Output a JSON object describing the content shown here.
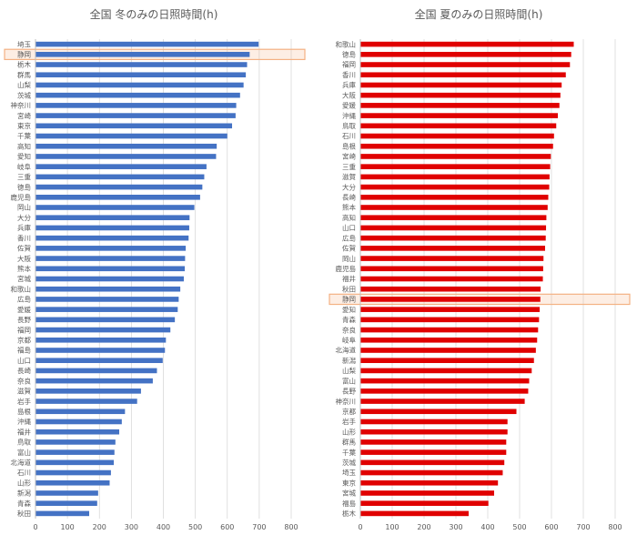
{
  "chart_data": [
    {
      "type": "bar",
      "orientation": "horizontal",
      "title": "全国 冬のみの日照時間(h)",
      "xlim": [
        0,
        800
      ],
      "xticks": [
        0,
        100,
        200,
        300,
        400,
        500,
        600,
        700,
        800
      ],
      "grid": true,
      "bar_color": "#4472C4",
      "highlight_color": "#F4B183",
      "highlight": "静岡",
      "categories": [
        "埼玉",
        "静岡",
        "栃木",
        "群馬",
        "山梨",
        "茨城",
        "神奈川",
        "宮崎",
        "東京",
        "千葉",
        "高知",
        "愛知",
        "岐阜",
        "三重",
        "徳島",
        "鹿児島",
        "岡山",
        "大分",
        "兵庫",
        "香川",
        "佐賀",
        "大阪",
        "熊本",
        "宮城",
        "和歌山",
        "広島",
        "愛媛",
        "長野",
        "福岡",
        "京都",
        "福島",
        "山口",
        "長崎",
        "奈良",
        "滋賀",
        "岩手",
        "島根",
        "沖縄",
        "福井",
        "鳥取",
        "富山",
        "北海道",
        "石川",
        "山形",
        "新潟",
        "青森",
        "秋田"
      ],
      "values": [
        698,
        670,
        662,
        658,
        651,
        640,
        628,
        626,
        615,
        600,
        567,
        565,
        535,
        528,
        522,
        515,
        497,
        482,
        481,
        479,
        470,
        468,
        467,
        464,
        453,
        448,
        445,
        436,
        422,
        408,
        405,
        398,
        380,
        367,
        330,
        318,
        280,
        270,
        262,
        250,
        247,
        245,
        236,
        232,
        196,
        193,
        168
      ]
    },
    {
      "type": "bar",
      "orientation": "horizontal",
      "title": "全国 夏のみの日照時間(h)",
      "xlim": [
        0,
        800
      ],
      "xticks": [
        0,
        100,
        200,
        300,
        400,
        500,
        600,
        700,
        800
      ],
      "grid": true,
      "bar_color": "#E00000",
      "highlight_color": "#F4B183",
      "highlight": "静岡",
      "categories": [
        "和歌山",
        "徳島",
        "福岡",
        "香川",
        "兵庫",
        "大阪",
        "愛媛",
        "沖縄",
        "鳥取",
        "石川",
        "島根",
        "宮崎",
        "三重",
        "滋賀",
        "大分",
        "長崎",
        "熊本",
        "高知",
        "山口",
        "広島",
        "佐賀",
        "岡山",
        "鹿児島",
        "福井",
        "秋田",
        "静岡",
        "愛知",
        "青森",
        "奈良",
        "岐阜",
        "北海道",
        "新潟",
        "山梨",
        "富山",
        "長野",
        "神奈川",
        "京都",
        "岩手",
        "山形",
        "群馬",
        "千葉",
        "茨城",
        "埼玉",
        "東京",
        "宮城",
        "福島",
        "栃木"
      ],
      "values": [
        670,
        662,
        658,
        645,
        632,
        628,
        625,
        620,
        615,
        608,
        605,
        598,
        596,
        594,
        593,
        590,
        588,
        584,
        583,
        582,
        580,
        575,
        574,
        573,
        566,
        565,
        563,
        561,
        558,
        555,
        551,
        545,
        538,
        530,
        527,
        516,
        490,
        462,
        462,
        458,
        458,
        452,
        447,
        432,
        420,
        402,
        340
      ]
    }
  ]
}
